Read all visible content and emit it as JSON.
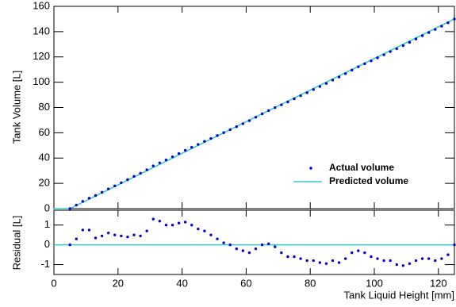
{
  "chart_data": [
    {
      "type": "scatter",
      "y_label": "Tank Volume [L]",
      "xlim": [
        0,
        125
      ],
      "ylim": [
        0,
        160
      ],
      "yticks": [
        0,
        20,
        40,
        60,
        80,
        100,
        120,
        140,
        160
      ],
      "legend": "lower right",
      "series": [
        {
          "name": "Actual volume",
          "type": "scatter",
          "color": "#0000cc",
          "x": [
            5,
            7,
            9,
            11,
            13,
            15,
            17,
            19,
            21,
            23,
            25,
            27,
            29,
            31,
            33,
            35,
            37,
            39,
            41,
            43,
            45,
            47,
            49,
            51,
            53,
            55,
            57,
            59,
            61,
            63,
            65,
            67,
            69,
            71,
            73,
            75,
            77,
            79,
            81,
            83,
            85,
            87,
            89,
            91,
            93,
            95,
            97,
            99,
            101,
            103,
            105,
            107,
            109,
            111,
            113,
            115,
            117,
            119,
            121,
            123,
            125
          ],
          "values": [
            0,
            2.8,
            5.75,
            8.25,
            10.35,
            12.95,
            15.6,
            18,
            20.45,
            22.9,
            25.5,
            27.95,
            30.7,
            33.8,
            36.2,
            38.5,
            41,
            43.6,
            46.15,
            48.5,
            50.8,
            53.2,
            55.5,
            57.8,
            60.1,
            62.5,
            64.8,
            67.2,
            69.6,
            72.3,
            75,
            77.55,
            79.9,
            82.1,
            84.4,
            86.9,
            89.3,
            91.7,
            94.2,
            96.6,
            99.05,
            101.7,
            104.1,
            106.8,
            109.6,
            112.2,
            114.6,
            116.9,
            119.3,
            121.7,
            124.2,
            126.5,
            128.95,
            131.55,
            134.2,
            136.8,
            139.3,
            141.7,
            144.3,
            147,
            150
          ]
        },
        {
          "name": "Predicted volume",
          "type": "line",
          "color": "#33cccc",
          "x": [
            0,
            5,
            125
          ],
          "values": [
            0,
            0,
            150
          ]
        }
      ]
    },
    {
      "type": "scatter",
      "y_label": "Residual [L]",
      "x_label": "Tank Liquid Height [mm]",
      "xlim": [
        0,
        125
      ],
      "ylim": [
        -1.5,
        1.75
      ],
      "xticks": [
        0,
        20,
        40,
        60,
        80,
        100,
        120
      ],
      "yticks": [
        -1,
        0,
        1
      ],
      "series": [
        {
          "type": "scatter",
          "color": "#0000cc",
          "x": [
            5,
            7,
            9,
            11,
            13,
            15,
            17,
            19,
            21,
            23,
            25,
            27,
            29,
            31,
            33,
            35,
            37,
            39,
            41,
            43,
            45,
            47,
            49,
            51,
            53,
            55,
            57,
            59,
            61,
            63,
            65,
            67,
            69,
            71,
            73,
            75,
            77,
            79,
            81,
            83,
            85,
            87,
            89,
            91,
            93,
            95,
            97,
            99,
            101,
            103,
            105,
            107,
            109,
            111,
            113,
            115,
            117,
            119,
            121,
            123,
            125
          ],
          "values": [
            0,
            0.3,
            0.75,
            0.75,
            0.35,
            0.45,
            0.6,
            0.5,
            0.45,
            0.4,
            0.5,
            0.45,
            0.7,
            1.3,
            1.2,
            1,
            1,
            1.1,
            1.15,
            1,
            0.8,
            0.7,
            0.5,
            0.3,
            0.1,
            0,
            -0.2,
            -0.3,
            -0.4,
            -0.2,
            0,
            0.05,
            -0.1,
            -0.4,
            -0.6,
            -0.6,
            -0.7,
            -0.8,
            -0.8,
            -0.9,
            -0.95,
            -0.8,
            -0.9,
            -0.7,
            -0.4,
            -0.3,
            -0.4,
            -0.6,
            -0.7,
            -0.8,
            -0.8,
            -1,
            -1.05,
            -0.95,
            -0.8,
            -0.7,
            -0.7,
            -0.8,
            -0.7,
            -0.5,
            0
          ]
        },
        {
          "type": "line",
          "color": "#33cccc",
          "x": [
            0,
            125
          ],
          "values": [
            0,
            0
          ]
        }
      ]
    }
  ]
}
